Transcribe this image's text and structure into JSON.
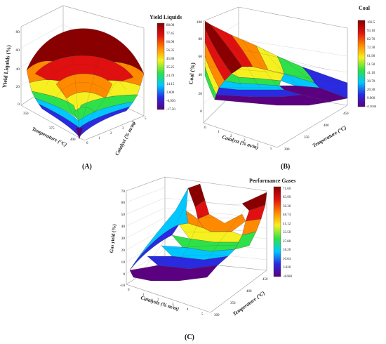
{
  "figure": {
    "caption_a": "(A)",
    "caption_b": "(B)",
    "caption_c": "(C)"
  },
  "chart_data": [
    {
      "type": "surface3d",
      "panel": "A",
      "title": "Yield Liquids",
      "xlabel": "Temperature (°C)",
      "ylabel": "Catalyst (% m/m)",
      "zlabel": "Yield Liquids (%)",
      "x_ticks": [
        "350",
        "375",
        "400"
      ],
      "y_ticks": [
        "0",
        "1",
        "2",
        "3",
        "4",
        "5"
      ],
      "z_ticks": [
        "0",
        "20",
        "40",
        "60",
        "80"
      ],
      "colorbar_ticks": [
        "88.00",
        "77.45",
        "66.90",
        "56.35",
        "45.80",
        "35.25",
        "24.70",
        "14.15",
        "3.600",
        "-6.950",
        "-17.50"
      ],
      "colorbar_range": [
        -17.5,
        88.0
      ],
      "shape": "dome peaking near center (~86) falling to ~-17 at one corner",
      "colors": [
        "#5b0080",
        "#2a2ae0",
        "#00c8ff",
        "#2ee04a",
        "#f6f020",
        "#ff8a00",
        "#e01010",
        "#8a0000"
      ]
    },
    {
      "type": "surface3d",
      "panel": "B",
      "title": "Coal",
      "xlabel": "Catalyst (% m/m)",
      "ylabel": "Temperature (°C)",
      "zlabel": "Coal (%)",
      "x_ticks": [
        "0",
        "1",
        "2",
        "3",
        "4",
        "5"
      ],
      "y_ticks": [
        "300",
        "350",
        "400",
        "450"
      ],
      "z_ticks": [
        "0",
        "20",
        "40",
        "60",
        "80",
        "100"
      ],
      "colorbar_ticks": [
        "103.5",
        "93.10",
        "82.70",
        "72.30",
        "61.90",
        "51.50",
        "41.10",
        "30.70",
        "20.30",
        "9.900",
        "-0.5000"
      ],
      "colorbar_range": [
        -0.5,
        103.5
      ],
      "shape": "high at low catalyst / low temperature (~100) decreasing to ~0 at high catalyst",
      "colors": [
        "#5b0080",
        "#2a2ae0",
        "#00c8ff",
        "#2ee04a",
        "#f6f020",
        "#ff8a00",
        "#e01010",
        "#8a0000"
      ]
    },
    {
      "type": "surface3d",
      "panel": "C",
      "title": "Performance Gases",
      "xlabel": "Catalysts (% m/m)",
      "ylabel": "Temperature (°C)",
      "zlabel": "Gas yield (%)",
      "x_ticks": [
        "0",
        "1",
        "2",
        "3",
        "4",
        "5"
      ],
      "y_ticks": [
        "300",
        "350",
        "400",
        "450"
      ],
      "z_ticks": [
        "-10",
        "0",
        "10",
        "20",
        "30",
        "40",
        "50",
        "60",
        "70"
      ],
      "colorbar_ticks": [
        "71.60",
        "63.99",
        "56.36",
        "48.74",
        "41.12",
        "33.50",
        "25.88",
        "18.26",
        "10.64",
        "3.020",
        "-4.600"
      ],
      "colorbar_range": [
        -4.6,
        71.6
      ],
      "shape": "bowl rising from ~-4 at low values to ~71 at high catalyst / high temperature",
      "colors": [
        "#5b0080",
        "#2a2ae0",
        "#00c8ff",
        "#2ee04a",
        "#f6f020",
        "#ff8a00",
        "#e01010",
        "#8a0000"
      ]
    }
  ]
}
